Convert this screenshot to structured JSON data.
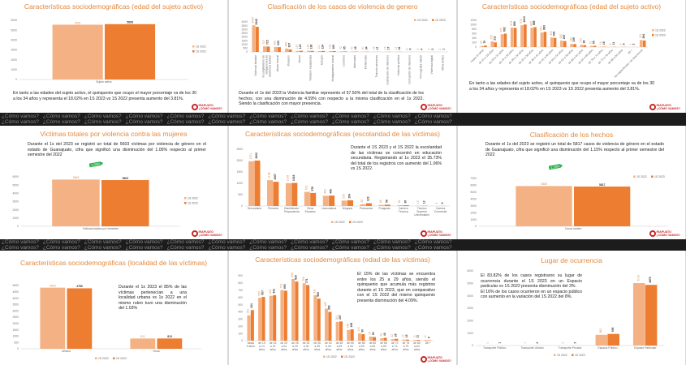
{
  "band_text": "¿Cómo vamos?",
  "logo": {
    "line1": "IRAPUATO",
    "line2": "¿CÓMO VAMOS?"
  },
  "colors": {
    "s2022": "#F4B183",
    "s2023": "#ED7D31",
    "title": "#E3893F",
    "badge": "#2BB24C"
  },
  "panels": [
    {
      "title": "Características sociodemográficas (edad del sujeto activo)",
      "text": "En tanto a las edades del sujeto activo, el quinquenio que ocupo el mayor porcentaje va de los 30 a los 34 años y representa el 18.02% en 1S 2023 vs 1S 2022 presenta aumento del 3.81%."
    },
    {
      "title": "Clasificación de los casos de violencia de genero",
      "text": "Durante el 1s del 2023 la Violencia familiar represento el 57.50% del total de la clasificación de los hechos, con una disminución de 4.59% con respecto a la misma clasificación en el 1s 2022. Siendo la clasificación con mayor presencia."
    },
    {
      "title": "Características sociodemográficas (edad del sujeto activo)",
      "text": "En tanto a las edades del sujeto activo, el quinquenio que ocupo el mayor porcentaje va de los 30 a los 34 años y representa el 18.02% en 1S 2023 vs 1S 2022 presenta aumento del 3.81%."
    },
    {
      "title": "Victimas totales por violencia contra las mujeres",
      "text": "Durante el 1s del 2023 se registró un total de 5603 víctimas por violencia de género en el estado de Guanajuato, cifra que significó una disminución del 1.05% respecto al primer semestre del 2022",
      "badge": "1.05%"
    },
    {
      "title": "Características sociodemográficas (escolaridad de las víctimas)",
      "text": "Durante el 1S 2023 y el 1S 2022 la escolaridad de las víctimas se concentró en educación secundaria. Registrando al 1s 2023 el 35.73% del total de los registros con aumento del 1.06% vs 1S 2022."
    },
    {
      "title": "Clasificación de los hechos",
      "text": "Durante el 1s del 2023 se registró un total de 5817 casos de violencia de género en el estado de Guanajuato, cifra que significó una disminución del 1.15% respecto al primer semestre del 2022",
      "badge": "1.15%"
    },
    {
      "title": "Características sociodemográficas (localidad de las víctimas)",
      "text": "Durante el 1s 2023 el 85% de las víctimas pertenecían a una localidad urbana vs 1s 2022 en el mismo rubro tuvo una disminución del 1.03%"
    },
    {
      "title": "Características sociodemográficas (edad de las víctimas)",
      "text": "El 15% de las víctimas se encuentra entre los 25 a 29 años, siendo el quinquenio que acumula más registros durante el 1S 2023, que en comparativo con el 1S 2022 del mismo quinquenio presenta disminución del 4.09%."
    },
    {
      "title": "Lugar de ocurrencia",
      "text": "El 83.82% de los casos registraron su lugar de ocurrencia durante el 1S 2023 en un Espacio particular vs 1S 2022 presenta disminución del 3%.\nEl 16% de los casos ocurrieron en un espacio público con aumento en la variación del 1S 2022 del 8%."
    }
  ],
  "chart_data": [
    {
      "type": "bar",
      "title": "Características sociodemográficas (edad del sujeto activo)",
      "categories": [
        "Sujeto activo"
      ],
      "series": [
        {
          "name": "1S 2022",
          "values": [
            5551
          ]
        },
        {
          "name": "1S 2023",
          "values": [
            5608
          ]
        }
      ],
      "ylim": [
        0,
        6000
      ],
      "ystep": 1000,
      "legend": "right"
    },
    {
      "type": "bar",
      "title": "Clasificación de los casos de violencia de genero",
      "categories": [
        "Violencia familiar",
        "Incumplimiento de obligaciones de asistencia familiar",
        "Abuso sexual",
        "Violación",
        "Acoso",
        "Violación equiparada",
        "Estupro",
        "Hostigamiento sexual",
        "Lesiones",
        "Amenazas",
        "Feminicidio",
        "Trata de personas",
        "Sustracción de menores",
        "Violencia política",
        "Corrupción de menores",
        "Pornografía infantil",
        "Violencia digital",
        "Otros delitos"
      ],
      "series": [
        {
          "name": "1S 2022",
          "values": [
            3556,
            737,
            662,
            446,
            137,
            149,
            110,
            108,
            72,
            50,
            30,
            19,
            17,
            17,
            8,
            5,
            3,
            2
          ]
        },
        {
          "name": "1S 2023",
          "values": [
            3345,
            715,
            633,
            337,
            143,
            136,
            124,
            109,
            65,
            45,
            34,
            17,
            17,
            16,
            6,
            4,
            2,
            1
          ]
        }
      ],
      "ylim": [
        0,
        4000
      ],
      "ystep": 500,
      "legend": "top-right"
    },
    {
      "type": "bar",
      "title": "Características sociodemográficas (edad del sujeto activo)",
      "categories": [
        "hasta 14 años",
        "de 15 a 19 años",
        "de 20 a 24 años",
        "de 25 a 29 años",
        "de 30 a 34 años",
        "de 35 a 39 años",
        "de 40 a 44 años",
        "de 45 a 49 años",
        "de 50 a 54 años",
        "de 55 a 59 años",
        "de 60 a 64 años",
        "de 65 a 69 años",
        "de 70 a 74 años",
        "de 75 a 79 años",
        "de 80 a 84 años",
        "85 +",
        "No especificado / se desconoce"
      ],
      "series": [
        {
          "name": "1S 2022",
          "values": [
            55,
            255,
            572,
            874,
            975,
            865,
            651,
            433,
            290,
            143,
            103,
            51,
            16,
            8,
            3,
            1,
            311
          ]
        },
        {
          "name": "1S 2023",
          "values": [
            70,
            211,
            602,
            860,
            1013,
            889,
            683,
            408,
            267,
            135,
            84,
            55,
            18,
            11,
            9,
            2,
            294
          ]
        }
      ],
      "ylim": [
        0,
        1200
      ],
      "ystep": 200,
      "legend": "right"
    },
    {
      "type": "bar",
      "title": "Victimas totales por violencia contra las mujeres",
      "categories": [
        "Victimas totales por semestre"
      ],
      "series": [
        {
          "name": "1S 2022",
          "values": [
            5663
          ]
        },
        {
          "name": "1S 2023",
          "values": [
            5603
          ]
        }
      ],
      "ylim": [
        0,
        6000
      ],
      "ystep": 1000,
      "legend": "right"
    },
    {
      "type": "bar",
      "title": "Características sociodemográficas (escolaridad de las víctimas)",
      "categories": [
        "Secundaria",
        "Primaria",
        "Bachillerato Preparatoria",
        "Otros Estudios",
        "Licenciatura",
        "Ninguna",
        "Preescolar",
        "Posgrado",
        "Carrera Técnica",
        "Técnico Superior Universitario",
        "Carrera Comercial"
      ],
      "series": [
        {
          "name": "1S 2022",
          "values": [
            1971,
            1138,
            1008,
            622,
            453,
            239,
            80,
            48,
            38,
            15,
            4
          ]
        },
        {
          "name": "1S 2023",
          "values": [
            2002,
            1067,
            1018,
            576,
            460,
            254,
            123,
            58,
            36,
            12,
            6
          ]
        }
      ],
      "ylim": [
        0,
        2500
      ],
      "ystep": 500,
      "legend": "bottom"
    },
    {
      "type": "bar",
      "title": "Clasificación de los hechos",
      "categories": [
        "Casos totales"
      ],
      "series": [
        {
          "name": "1S 2022",
          "values": [
            5885
          ]
        },
        {
          "name": "1S 2023",
          "values": [
            5817
          ]
        }
      ],
      "ylim": [
        0,
        7000
      ],
      "ystep": 1000,
      "legend": "top-right"
    },
    {
      "type": "bar",
      "title": "Características sociodemográficas (localidad de las víctimas)",
      "categories": [
        "Urbana",
        "Rural"
      ],
      "series": [
        {
          "name": "1S 2022",
          "values": [
            4830,
            811
          ]
        },
        {
          "name": "1S 2023",
          "values": [
            4780,
            813
          ]
        }
      ],
      "ylim": [
        0,
        5000
      ],
      "ystep": 500,
      "legend": "bottom"
    },
    {
      "type": "bar",
      "title": "Características sociodemográficas (edad de las víctimas)",
      "categories": [
        "hasta 9 años",
        "de 10 a 14 años",
        "de 15 a 19 años",
        "de 20 a 24 años",
        "de 25 a 29 años",
        "de 30 a 34 años",
        "de 35 a 39 años",
        "de 40 a 44 años",
        "de 45 a 49 años",
        "de 50 a 54 años",
        "de 55 a 59 años",
        "de 60 a 64 años",
        "de 65 a 69 años",
        "de 70 a 74 años",
        "de 75 a 79 años",
        "de 80 a 84 años",
        "85 +"
      ],
      "series": [
        {
          "name": "1S 2022",
          "values": [
            351,
            595,
            622,
            702,
            855,
            796,
            630,
            445,
            261,
            148,
            100,
            57,
            33,
            22,
            15,
            11,
            11
          ]
        },
        {
          "name": "1S 2023",
          "values": [
            424,
            607,
            631,
            693,
            820,
            771,
            583,
            399,
            267,
            158,
            90,
            50,
            40,
            26,
            15,
            11,
            6
          ]
        }
      ],
      "ylim": [
        0,
        900
      ],
      "ystep": 100,
      "legend": "bottom"
    },
    {
      "type": "bar",
      "title": "Lugar de ocurrencia",
      "categories": [
        "Transporte Público",
        "Transporte Urbano",
        "Transporte Privado",
        "Espacio Público",
        "Espacio Particular"
      ],
      "series": [
        {
          "name": "1S 2022",
          "values": [
            0,
            1,
            2,
            862,
            5019
          ]
        },
        {
          "name": "1S 2023",
          "values": [
            1,
            2,
            3,
            935,
            4875
          ]
        }
      ],
      "ylim": [
        0,
        6000
      ],
      "ystep": 1000,
      "legend": "bottom"
    }
  ]
}
